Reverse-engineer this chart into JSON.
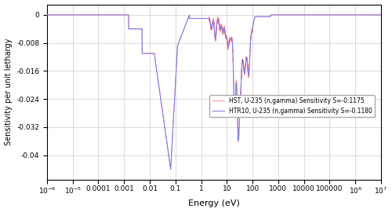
{
  "xlabel": "Energy (eV)",
  "ylabel": "Sensitivity per unit lethargy",
  "ylim": [
    -0.047,
    0.003
  ],
  "yticks": [
    0,
    -0.008,
    -0.016,
    -0.024,
    -0.032,
    -0.04
  ],
  "htr10_label": "HTR10, U-235 (n,gamma) Sensitivity S=-0.1180",
  "hst_label": "HST, U-235 (n,gamma) Sensitivity S=-0.1175",
  "htr10_color": "#7777ee",
  "hst_color": "#ff8888",
  "background_color": "#ffffff",
  "grid_color": "#cccccc",
  "linewidth": 0.7
}
